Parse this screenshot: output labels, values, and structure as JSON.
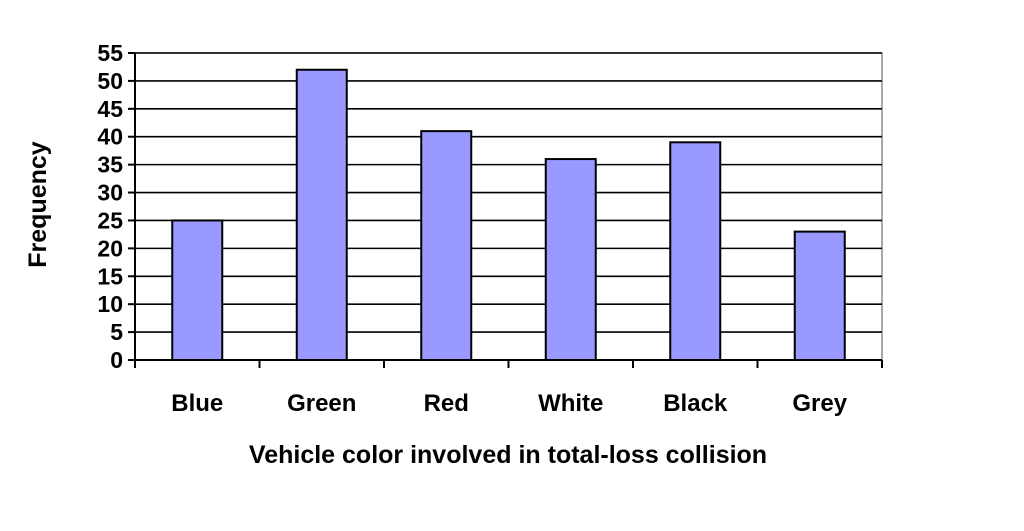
{
  "chart_data": {
    "type": "bar",
    "categories": [
      "Blue",
      "Green",
      "Red",
      "White",
      "Black",
      "Grey"
    ],
    "values": [
      25,
      52,
      41,
      36,
      39,
      23
    ],
    "xlabel": "Vehicle color involved in total-loss collision",
    "ylabel": "Frequency",
    "ylim": [
      0,
      55
    ],
    "yticks": [
      0,
      5,
      10,
      15,
      20,
      25,
      30,
      35,
      40,
      45,
      50,
      55
    ],
    "grid": true,
    "legend": "none",
    "colors": {
      "bar_fill": "#9999ff",
      "bar_edge": "#000000",
      "frame": "#8c8c8c"
    }
  }
}
